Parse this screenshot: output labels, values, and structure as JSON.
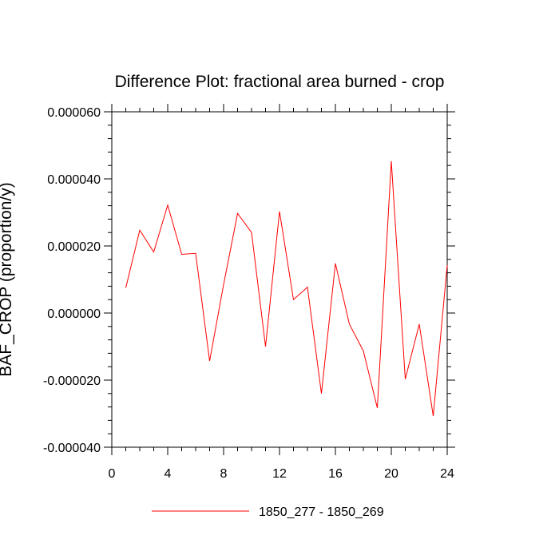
{
  "chart_data": {
    "type": "line",
    "title": "Difference Plot: fractional area burned - crop",
    "xlabel": "",
    "ylabel": "BAF_CROP  (proportion/y)",
    "xlim": [
      0,
      24
    ],
    "ylim": [
      -4e-05,
      6e-05
    ],
    "x_ticks": [
      0,
      4,
      8,
      12,
      16,
      20,
      24
    ],
    "x_tick_labels": [
      "0",
      "4",
      "8",
      "12",
      "16",
      "20",
      "24"
    ],
    "y_ticks": [
      -4e-05,
      -2e-05,
      0,
      2e-05,
      4e-05,
      6e-05
    ],
    "y_tick_labels": [
      "-0.000040",
      "-0.000020",
      "0.000000",
      "0.000020",
      "0.000040",
      "0.000060"
    ],
    "grid": false,
    "legend_position": "bottom",
    "series": [
      {
        "name": "1850_277 - 1850_269",
        "color": "#ff0000",
        "x": [
          1,
          2,
          3,
          4,
          5,
          6,
          7,
          8,
          9,
          10,
          11,
          12,
          13,
          14,
          15,
          16,
          17,
          18,
          19,
          20,
          21,
          22,
          23,
          24
        ],
        "y": [
          7.5e-06,
          2.47e-05,
          1.82e-05,
          3.22e-05,
          1.75e-05,
          1.78e-05,
          -1.43e-05,
          8.5e-06,
          2.97e-05,
          2.4e-05,
          -1e-05,
          3.03e-05,
          4e-06,
          7.7e-06,
          -2.4e-05,
          1.48e-05,
          -3.3e-06,
          -1.13e-05,
          -2.83e-05,
          4.53e-05,
          -1.97e-05,
          -3.3e-06,
          -3.07e-05,
          1.43e-05
        ]
      }
    ]
  }
}
